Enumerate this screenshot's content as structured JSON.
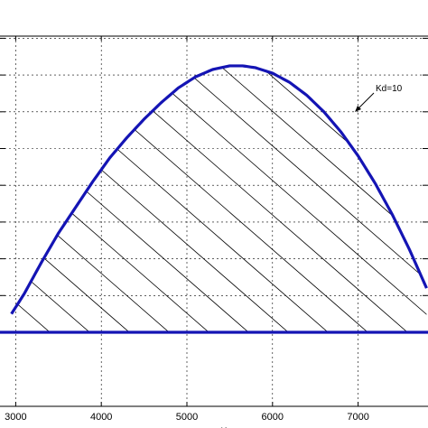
{
  "chart_data": {
    "type": "area",
    "title": "",
    "xlabel": "Kp",
    "ylabel": "",
    "xlim": [
      2950,
      7800
    ],
    "ylim": [
      -5,
      82
    ],
    "x_ticks": [
      3000,
      4000,
      5000,
      6000,
      7000
    ],
    "x_tick_labels": [
      "3000",
      "4000",
      "5000",
      "6000",
      "7000"
    ],
    "y_ticks": [
      10,
      20,
      30,
      40,
      50,
      60,
      70,
      80
    ],
    "grid": true,
    "series": [
      {
        "name": "Kd=10",
        "type": "line",
        "x": [
          2950,
          3100,
          3300,
          3500,
          3700,
          3900,
          4100,
          4300,
          4500,
          4700,
          4900,
          5100,
          5300,
          5500,
          5650,
          5800,
          6000,
          6200,
          6400,
          6600,
          6800,
          7000,
          7200,
          7400,
          7600,
          7800
        ],
        "values": [
          5,
          10.5,
          19,
          27,
          34,
          41,
          47.5,
          53,
          58,
          62.5,
          66.5,
          69.5,
          71.5,
          72.5,
          72.5,
          72,
          70.5,
          68,
          64.5,
          60,
          54.5,
          48,
          40.5,
          32,
          22.5,
          12
        ]
      },
      {
        "name": "",
        "type": "line",
        "x": [
          2950,
          7800
        ],
        "values": [
          0,
          0
        ]
      }
    ],
    "shaded_region": "hatched area between the Kd=10 curve and the zero line",
    "annotations": [
      {
        "text": "Kd=10",
        "x": 7000,
        "y": 60,
        "arrow_to_x": 6950,
        "arrow_to_y": 50
      }
    ],
    "colors": {
      "curve": "#1414b4",
      "grid": "#000000",
      "hatch": "#000000"
    }
  }
}
